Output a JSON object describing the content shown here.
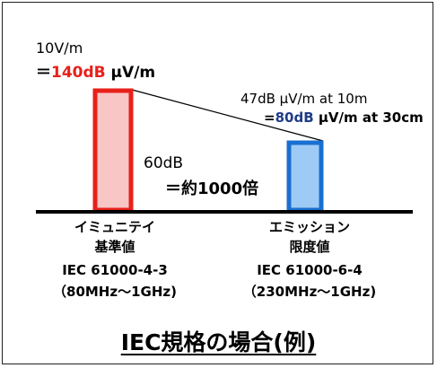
{
  "immunity": {
    "level_line1": "10V/m",
    "level_line2_prefix": "＝",
    "level_line2_value": "140dB",
    "level_line2_unit": " μV/m",
    "label_line1": "イミュニテイ",
    "label_line2": "基準値",
    "standard": "IEC 61000-4-3",
    "range": "（80MHz～1GHz)",
    "bar_fill": "#f7c6c5",
    "bar_border": "#e8201a"
  },
  "emission": {
    "level_line1": "47dB μV/m at 10m",
    "level_line2_prefix": "=",
    "level_line2_value": "80dB",
    "level_line2_unit": " μV/m at 30cm",
    "label_line1": "エミッション",
    "label_line2": "限度値",
    "standard": "IEC 61000-6-4",
    "range": "（230MHz～1GHz)",
    "bar_fill": "#9ecbf5",
    "bar_border": "#1a6fd0"
  },
  "difference": {
    "line1": "60dB",
    "line2": "＝約1000倍"
  },
  "title": "IEC規格の場合(例)"
}
